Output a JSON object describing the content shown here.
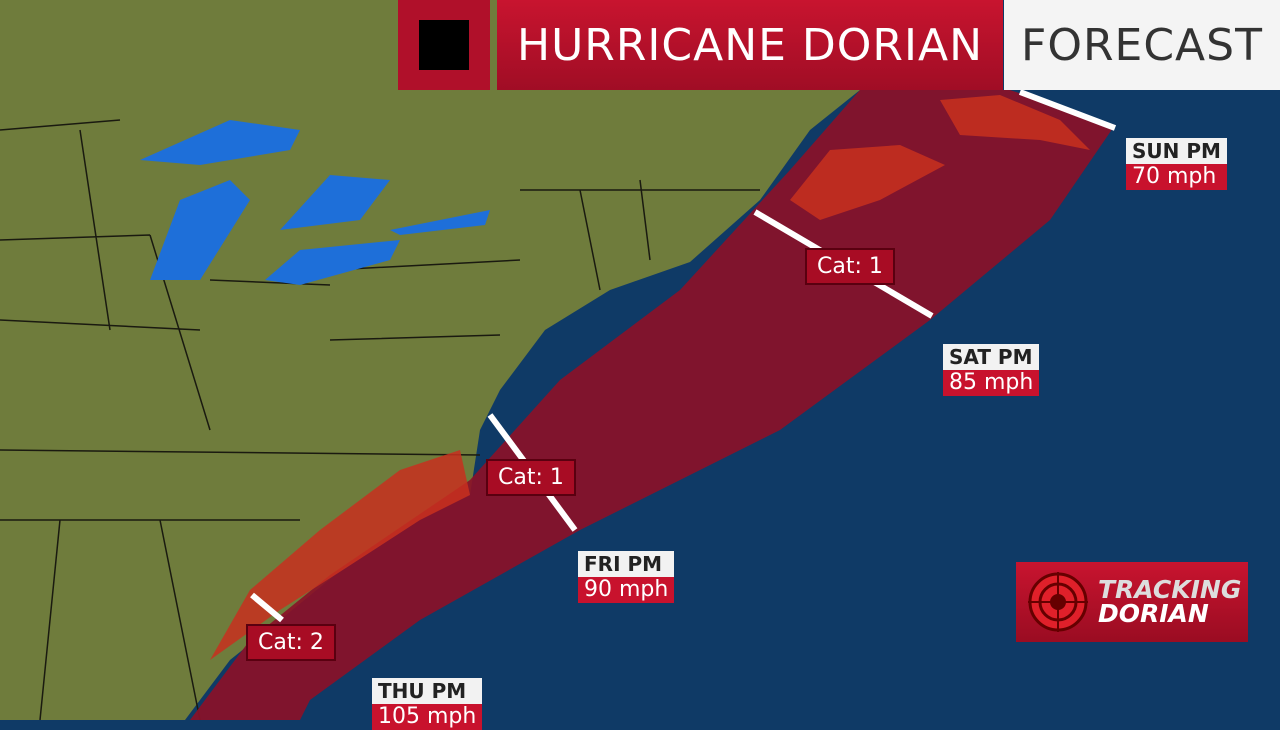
{
  "header": {
    "title": "HURRICANE DORIAN",
    "subtitle": "FORECAST",
    "icon": "black-square-icon"
  },
  "forecast_points": [
    {
      "day": "THU PM",
      "speed": "105 mph"
    },
    {
      "day": "FRI PM",
      "speed": "90 mph"
    },
    {
      "day": "SAT PM",
      "speed": "85 mph"
    },
    {
      "day": "SUN PM",
      "speed": "70 mph"
    }
  ],
  "categories": [
    "Cat: 2",
    "Cat: 1",
    "Cat: 1"
  ],
  "logo": {
    "line1": "TRACKING",
    "line2": "DORIAN",
    "icon": "radar-target-icon"
  },
  "colors": {
    "ocean": "#0f3a66",
    "land": "#6b7a3a",
    "cone": "#8c1228",
    "lakes": "#1e6fd9",
    "brand_red": "#c8122d"
  }
}
